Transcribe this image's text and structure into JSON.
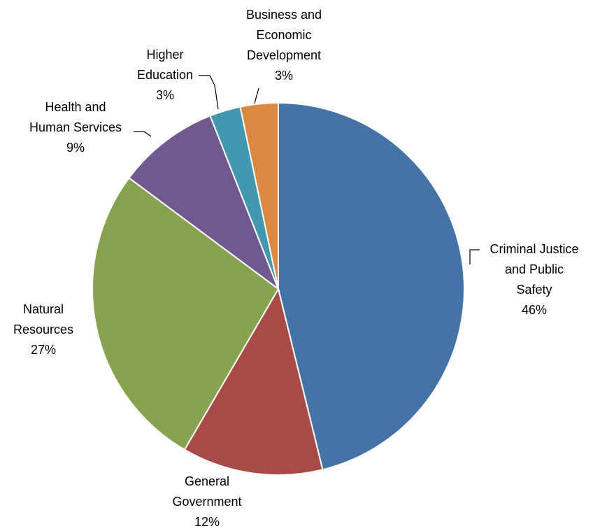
{
  "chart_data": {
    "type": "pie",
    "title": "",
    "start_angle_deg": 0,
    "direction": "clockwise",
    "legend": "none",
    "slices": [
      {
        "key": "criminal_justice",
        "label_lines": [
          "Criminal Justice",
          "and Public",
          "Safety"
        ],
        "percent_label": "46%",
        "value": 46.4,
        "color": "#4673A6"
      },
      {
        "key": "general_government",
        "label_lines": [
          "General",
          "Government"
        ],
        "percent_label": "12%",
        "value": 12.3,
        "color": "#A84A47"
      },
      {
        "key": "natural_resources",
        "label_lines": [
          "Natural",
          "Resources"
        ],
        "percent_label": "27%",
        "value": 26.9,
        "color": "#88A34F"
      },
      {
        "key": "health_human_services",
        "label_lines": [
          "Health and",
          "Human Services"
        ],
        "percent_label": "9%",
        "value": 8.9,
        "color": "#70598F"
      },
      {
        "key": "higher_education",
        "label_lines": [
          "Higher",
          "Education"
        ],
        "percent_label": "3%",
        "value": 2.7,
        "color": "#4198AF"
      },
      {
        "key": "business_economic",
        "label_lines": [
          "Business and",
          "Economic",
          "Development"
        ],
        "percent_label": "3%",
        "value": 3.3,
        "color": "#DA8842"
      }
    ]
  }
}
